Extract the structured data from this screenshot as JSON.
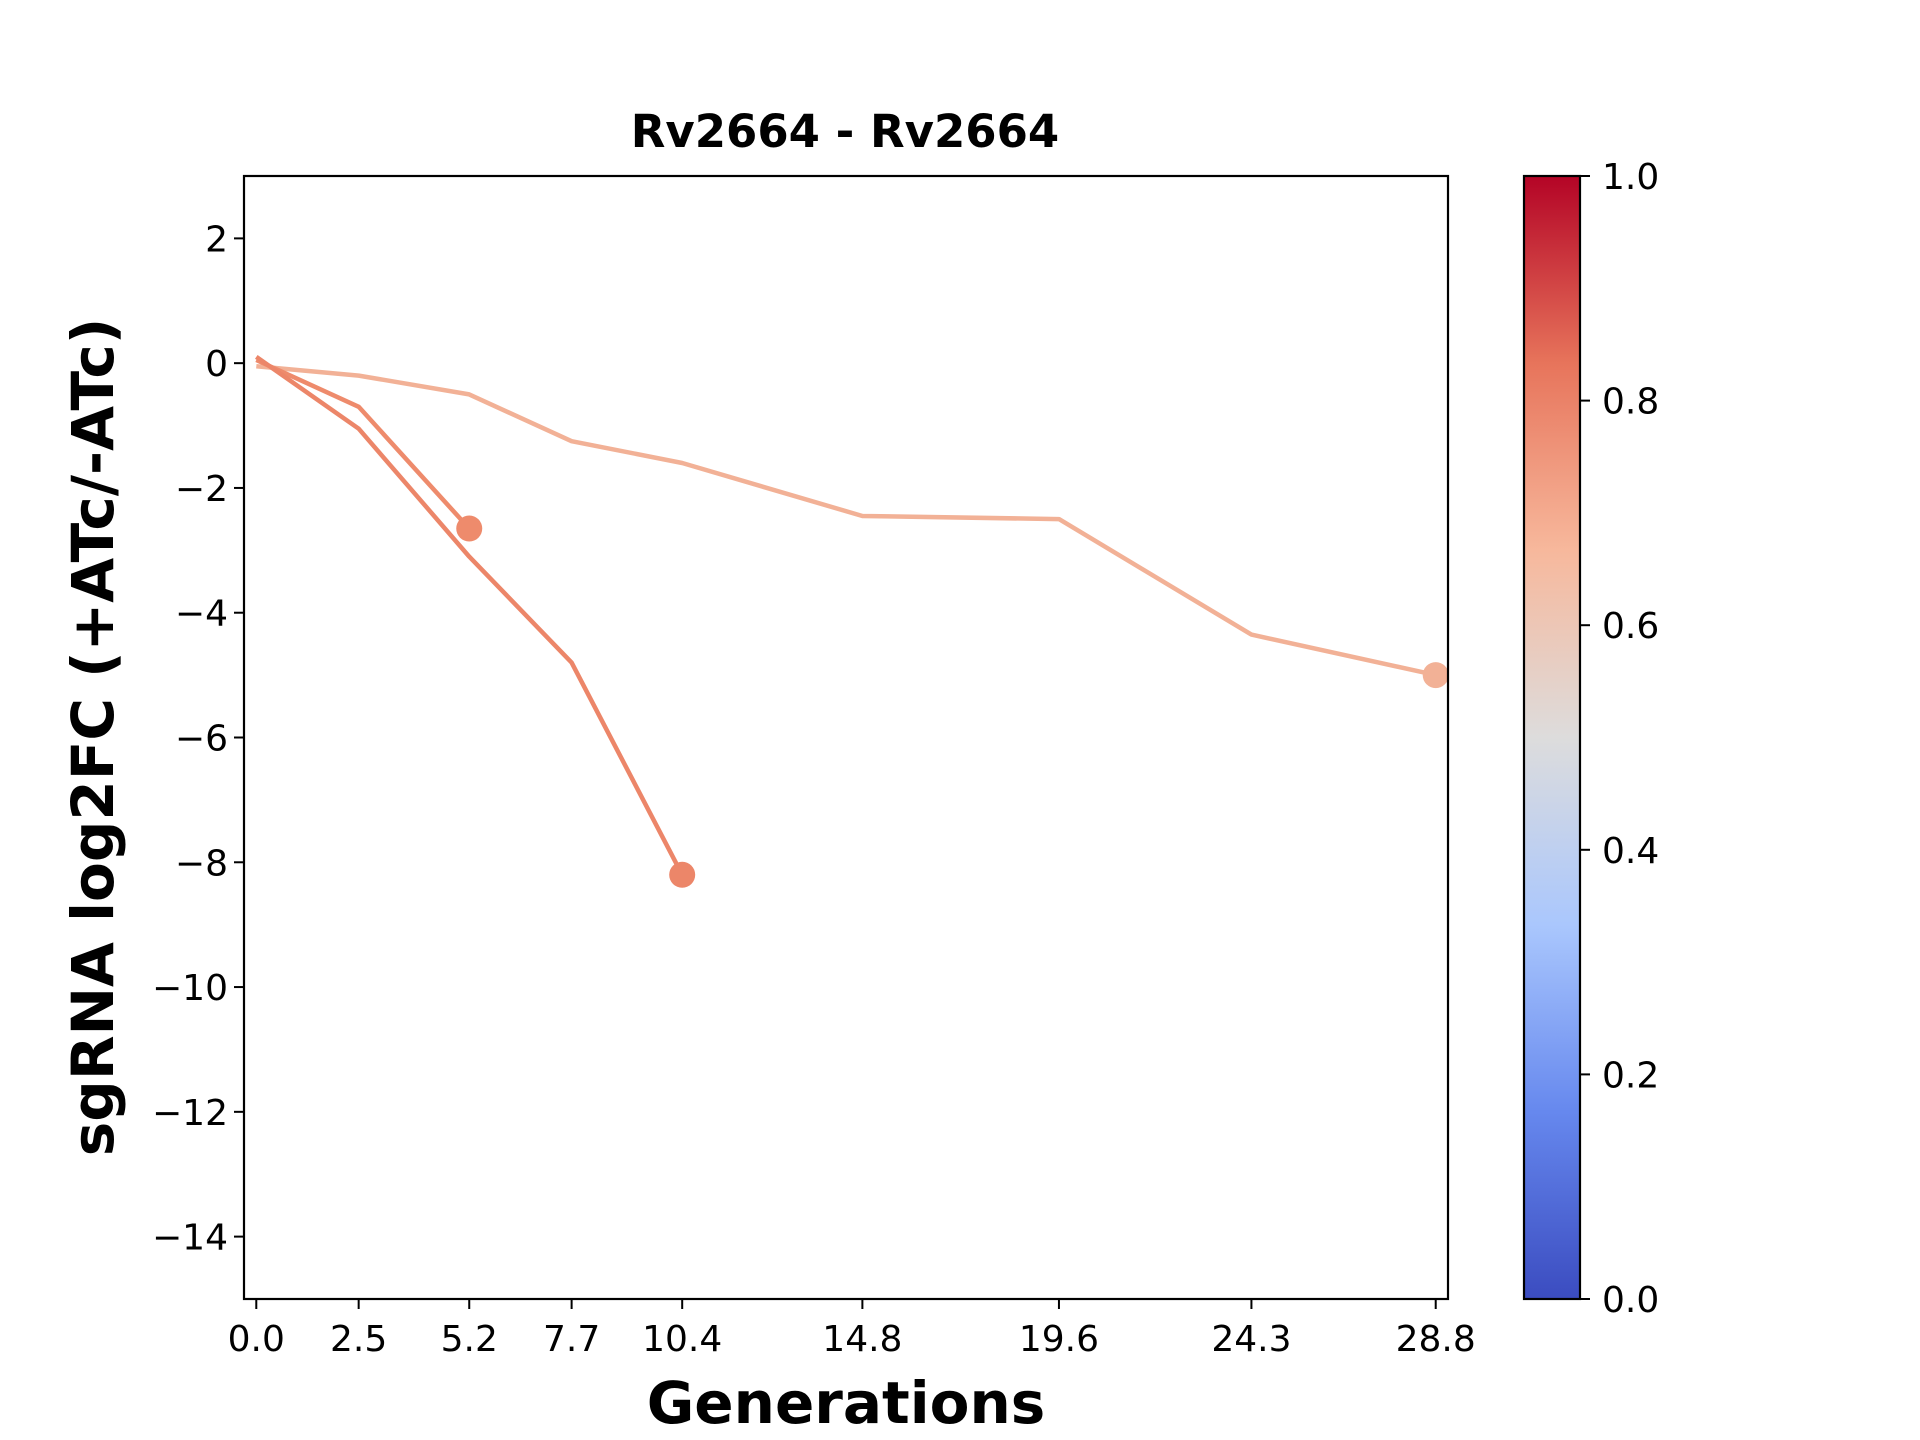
{
  "chart_data": {
    "type": "line",
    "title": "Rv2664 - Rv2664",
    "xlabel": "Generations",
    "ylabel": "sgRNA log2FC (+ATc/-ATc)",
    "xlim": [
      -0.3,
      29.1
    ],
    "ylim": [
      -15,
      3
    ],
    "x_ticks": [
      0.0,
      2.5,
      5.2,
      7.7,
      10.4,
      14.8,
      19.6,
      24.3,
      28.8
    ],
    "x_tick_labels": [
      "0.0",
      "2.5",
      "5.2",
      "7.7",
      "10.4",
      "14.8",
      "19.6",
      "24.3",
      "28.8"
    ],
    "y_ticks": [
      2,
      0,
      -2,
      -4,
      -6,
      -8,
      -10,
      -12,
      -14
    ],
    "y_tick_labels": [
      "2",
      "0",
      "−2",
      "−4",
      "−6",
      "−8",
      "−10",
      "−12",
      "−14"
    ],
    "grid": false,
    "series": [
      {
        "color_value": 0.68,
        "color": "#f2b196",
        "x": [
          0.0,
          2.5,
          5.2,
          7.7,
          10.4,
          14.8,
          19.6,
          24.3,
          28.8
        ],
        "y": [
          -0.05,
          -0.2,
          -0.5,
          -1.25,
          -1.6,
          -2.45,
          -2.5,
          -4.35,
          -5.0
        ]
      },
      {
        "color_value": 0.77,
        "color": "#ee8b6c",
        "x": [
          0.0,
          2.5,
          5.2
        ],
        "y": [
          0.05,
          -0.7,
          -2.65
        ]
      },
      {
        "color_value": 0.78,
        "color": "#ec8669",
        "x": [
          0.0,
          2.5,
          5.2,
          7.7,
          10.4
        ],
        "y": [
          0.1,
          -1.05,
          -3.1,
          -4.8,
          -8.2
        ]
      }
    ],
    "colorbar": {
      "colormap": "coolwarm",
      "range": [
        0.0,
        1.0
      ],
      "ticks": [
        0.0,
        0.2,
        0.4,
        0.6,
        0.8,
        1.0
      ],
      "tick_labels": [
        "0.0",
        "0.2",
        "0.4",
        "0.6",
        "0.8",
        "1.0"
      ],
      "stops": [
        "#3b4cc0",
        "#6688ee",
        "#aac7fd",
        "#dddcdc",
        "#f7b89c",
        "#e7745b",
        "#b40426"
      ]
    }
  }
}
